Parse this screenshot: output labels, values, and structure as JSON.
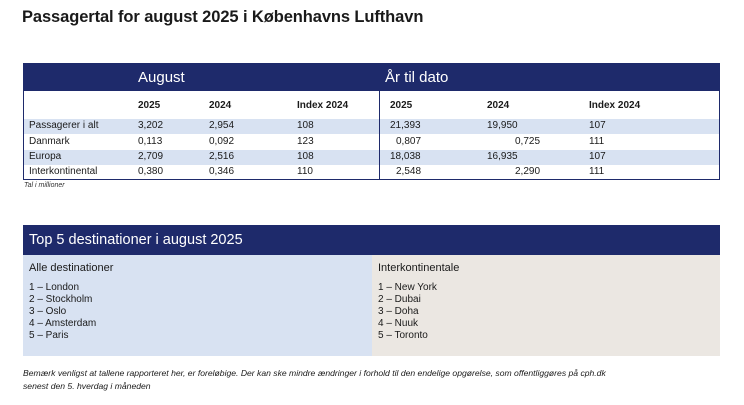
{
  "title": "Passagertal for august 2025 i Københavns Lufthavn",
  "stats_table": {
    "group_august": "August",
    "group_ytd": "År til dato",
    "columns": [
      "2025",
      "2024",
      "Index 2024",
      "2025",
      "2024",
      "Index 2024"
    ],
    "rows": [
      {
        "label": "Passagerer i alt",
        "values": [
          "3,202",
          "2,954",
          "108",
          "21,393",
          "19,950",
          "107"
        ]
      },
      {
        "label": "Danmark",
        "values": [
          "0,113",
          "0,092",
          "123",
          "0,807",
          "0,725",
          "111"
        ]
      },
      {
        "label": "Europa",
        "values": [
          "2,709",
          "2,516",
          "108",
          "18,038",
          "16,935",
          "107"
        ]
      },
      {
        "label": "Interkontinental",
        "values": [
          "0,380",
          "0,346",
          "110",
          "2,548",
          "2,290",
          "111"
        ]
      }
    ],
    "note": "Tal i millioner"
  },
  "top5": {
    "title": "Top 5 destinationer i august 2025",
    "all_title": "Alle destinationer",
    "all": [
      "1 – London",
      "2 – Stockholm",
      "3 – Oslo",
      "4 – Amsterdam",
      "5 – Paris"
    ],
    "inter_title": "Interkontinentale",
    "inter": [
      "1 – New York",
      "2 – Dubai",
      "3 – Doha",
      "4 – Nuuk",
      "5 – Toronto"
    ]
  },
  "footer": {
    "line1": "Bemærk venligst at tallene rapporteret her, er foreløbige. Der kan ske mindre ændringer i forhold til den endelige opgørelse, som offentliggøres på cph.dk",
    "line2": "senest den 5. hverdag i måneden"
  },
  "colors": {
    "navy": "#1e2a6b",
    "light_blue": "#d8e2f2",
    "beige": "#ebe7e2"
  }
}
